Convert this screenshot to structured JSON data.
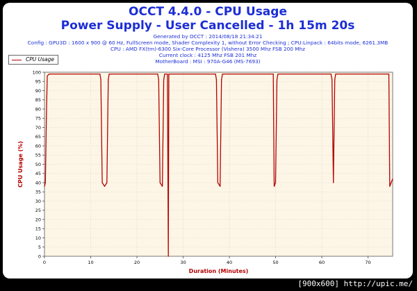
{
  "title": "OCCT 4.4.0 - CPU Usage",
  "subtitle": "Power Supply - User Cancelled - 1h 15m 20s",
  "info_lines": [
    "Generated by OCCT : 2014/08/18 21:34:21",
    "Config : GPU3D : 1600 x 900 @ 60 Hz, FullScreen mode, Shader Complexity 1, without Error Checking ; CPU:Linpack : 64bits mode, 6261.3MB",
    "CPU : AMD FX(tm)-6300 Six-Core Processor (Vishera) 3500 Mhz FSB 200 Mhz",
    "Current clock : 4125 Mhz FSB 201 Mhz",
    "MotherBoard : MSI : 970A-G46 (MS-7693)"
  ],
  "watermark": "[900x600] http://upic.me/",
  "colors": {
    "series": "#b40000",
    "plot_bg": "#fdf6e6",
    "text_blue": "#1c2ed6",
    "axis_label": "#b40000"
  },
  "chart_data": {
    "type": "line",
    "xlabel": "Duration (Minutes)",
    "ylabel": "CPU Usage (%)",
    "xlim": [
      0,
      75.33
    ],
    "ylim": [
      0,
      100
    ],
    "xticks": [
      0,
      10,
      20,
      30,
      40,
      50,
      60,
      70
    ],
    "yticks": [
      0,
      5,
      10,
      15,
      20,
      25,
      30,
      35,
      40,
      45,
      50,
      55,
      60,
      65,
      70,
      75,
      80,
      85,
      90,
      95,
      100
    ],
    "grid": true,
    "legend": "top-left",
    "series": [
      {
        "name": "CPU Usage",
        "x": [
          0,
          0.2,
          0.4,
          0.6,
          1.0,
          12.0,
          12.2,
          12.5,
          13.0,
          13.5,
          13.8,
          14.0,
          24.5,
          24.7,
          25.0,
          25.5,
          25.8,
          26.0,
          26.6,
          26.8,
          26.9,
          27.0,
          37.0,
          37.2,
          37.5,
          38.0,
          38.3,
          38.5,
          49.5,
          49.7,
          50.0,
          50.3,
          50.5,
          62.0,
          62.2,
          62.5,
          62.8,
          63.0,
          74.5,
          74.7,
          75.0,
          75.33
        ],
        "y": [
          38,
          40,
          75,
          98,
          99,
          99,
          96,
          40,
          38,
          40,
          96,
          99,
          99,
          96,
          40,
          38,
          96,
          99,
          99,
          0,
          99,
          99,
          99,
          96,
          40,
          38,
          96,
          99,
          99,
          38,
          40,
          96,
          99,
          99,
          96,
          40,
          96,
          99,
          99,
          38,
          40,
          42
        ]
      }
    ]
  }
}
